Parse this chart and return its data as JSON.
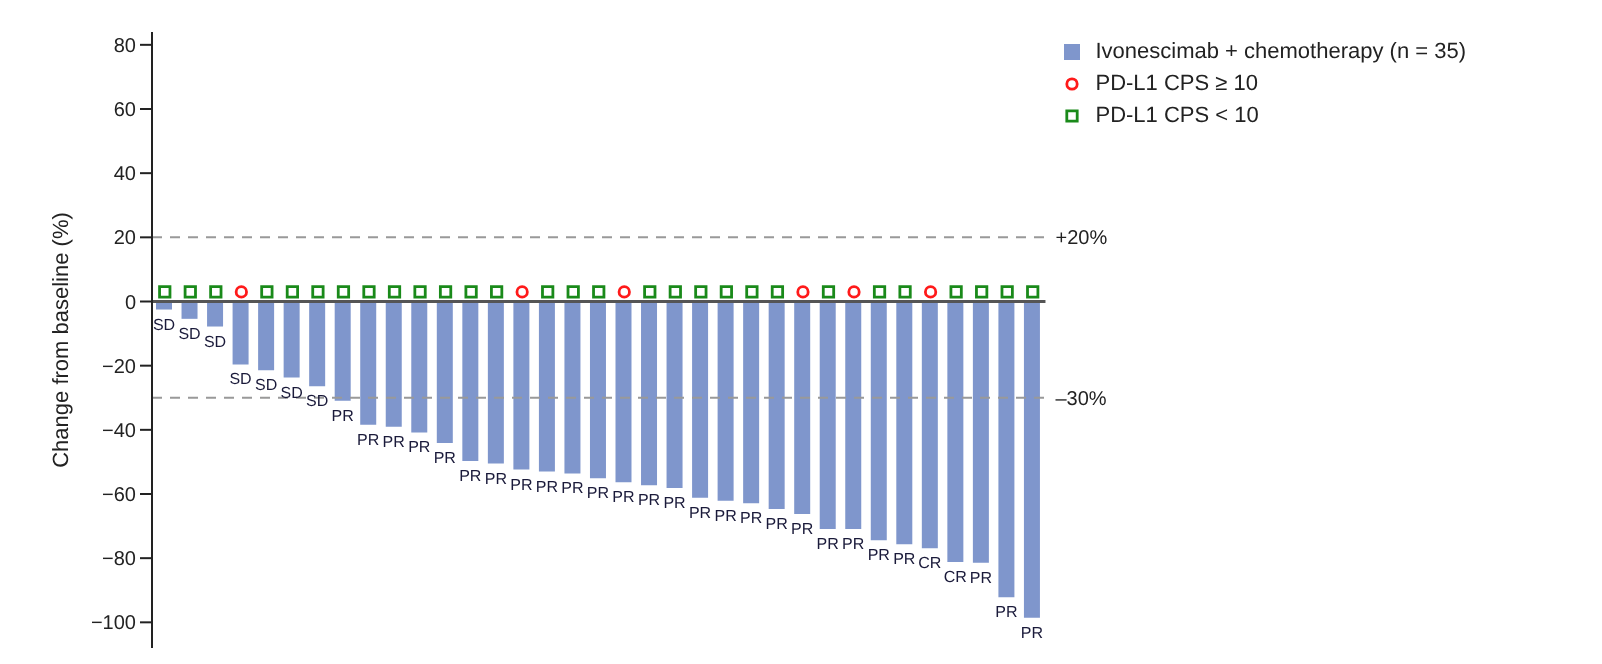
{
  "chart_data": {
    "type": "bar",
    "ylabel": "Change from baseline (%)",
    "categories": [
      null,
      null,
      null,
      null,
      null,
      null,
      null,
      null,
      null,
      null,
      null,
      null,
      null,
      null,
      null,
      null,
      null,
      null,
      null,
      null,
      null,
      null,
      null,
      null,
      null,
      null,
      null,
      null,
      null,
      null,
      null,
      null,
      null,
      null,
      null
    ],
    "series": [
      {
        "name": "Ivonescimab + chemotherapy (n = 35)",
        "color": "#7f96cc",
        "values": [
          -2.5,
          -5.4,
          -7.8,
          -19.6,
          -21.4,
          -23.7,
          -26.4,
          -30.9,
          -38.4,
          -39,
          -40.8,
          -44.1,
          -49.7,
          -50.5,
          -52.4,
          -53,
          -53.6,
          -55.1,
          -56.3,
          -57.3,
          -58.1,
          -61.2,
          -62.1,
          -62.9,
          -64.7,
          -66.2,
          -70.9,
          -70.9,
          -74.4,
          -75.7,
          -76.9,
          -81.2,
          -81.4,
          -92.2,
          -98.6
        ],
        "value_labels": [
          "SD",
          "SD",
          "SD",
          "SD",
          "SD",
          "SD",
          "SD",
          "PR",
          "PR",
          "PR",
          "PR",
          "PR",
          "PR",
          "PR",
          "PR",
          "PR",
          "PR",
          "PR",
          "PR",
          "PR",
          "PR",
          "PR",
          "PR",
          "PR",
          "PR",
          "PR",
          "PR",
          "PR",
          "PR",
          "PR",
          "CR",
          "CR",
          "PR",
          "PR",
          "PR"
        ]
      },
      {
        "name": "PD-L1 CPS ≥ 10",
        "type": "scatter",
        "marker": "circle",
        "color": "#ff1a1a",
        "values": [
          null,
          null,
          null,
          3,
          null,
          null,
          null,
          null,
          null,
          null,
          null,
          null,
          null,
          null,
          3,
          null,
          null,
          null,
          3,
          null,
          null,
          null,
          null,
          null,
          null,
          3,
          null,
          3,
          null,
          null,
          3,
          null,
          null,
          null,
          null
        ]
      },
      {
        "name": "PD-L1 CPS < 10",
        "type": "scatter",
        "marker": "square",
        "color": "#1a8a1a",
        "values": [
          3,
          3,
          3,
          null,
          3,
          3,
          3,
          3,
          3,
          3,
          3,
          3,
          3,
          3,
          null,
          3,
          3,
          3,
          null,
          3,
          3,
          3,
          3,
          3,
          3,
          null,
          3,
          null,
          3,
          3,
          null,
          3,
          3,
          3,
          3
        ]
      }
    ],
    "ylim": [
      -108,
      84
    ],
    "yticks": [
      -100,
      -80,
      -60,
      -40,
      -20,
      0,
      20,
      40,
      60,
      80
    ],
    "ref_lines": [
      {
        "axis": "y",
        "value": 20,
        "label": "+20%",
        "color": "#999999",
        "line_style": "dashed"
      },
      {
        "axis": "y",
        "value": -30,
        "label": "–30%",
        "color": "#999999",
        "line_style": "dashed"
      },
      {
        "axis": "y",
        "value": 0,
        "color": "#555555",
        "line_style": "solid"
      }
    ],
    "legend": "top right"
  }
}
